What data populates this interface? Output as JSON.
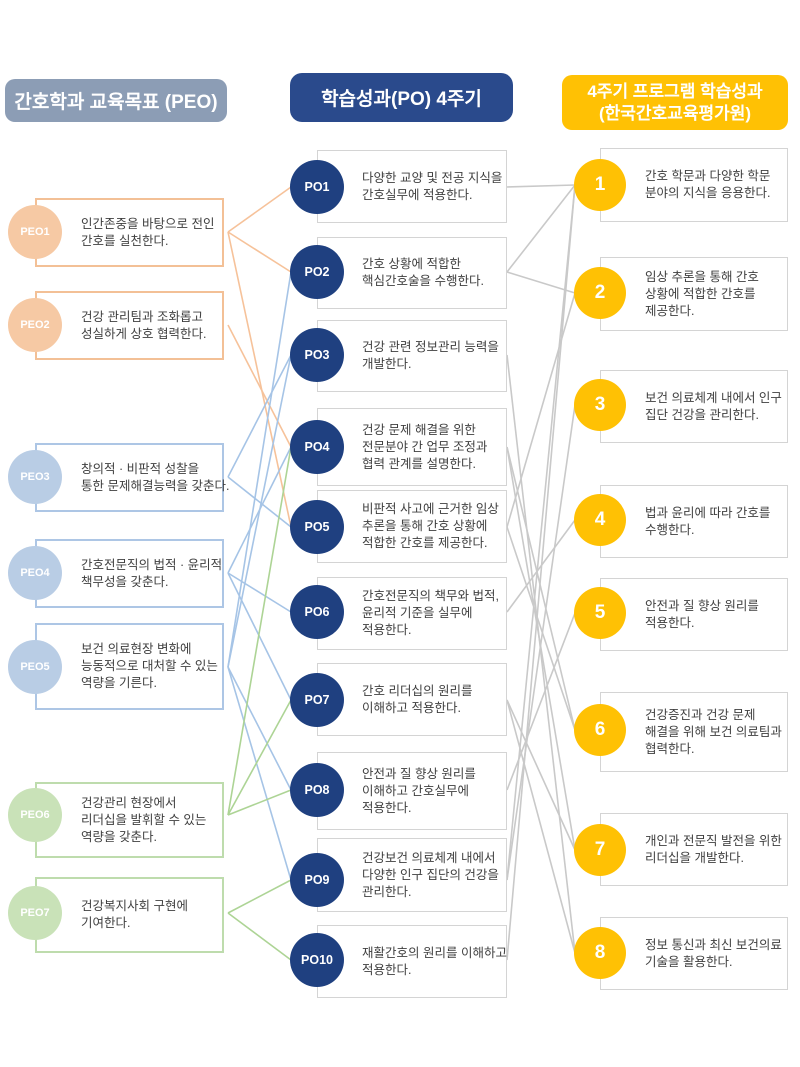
{
  "headers": {
    "peo": "간호학과 교육목표 (PEO)",
    "po": "학습성과(PO) 4주기",
    "outcome_line1": "4주기 프로그램 학습성과",
    "outcome_line2": "(한국간호교육평가원)"
  },
  "peo_items": [
    {
      "id": "PEO1",
      "label": "PEO1",
      "group": "peach",
      "lines": [
        "인간존중을 바탕으로 전인",
        "간호를 실천한다."
      ]
    },
    {
      "id": "PEO2",
      "label": "PEO2",
      "group": "peach",
      "lines": [
        "건강 관리팀과 조화롭고",
        "성실하게 상호 협력한다."
      ]
    },
    {
      "id": "PEO3",
      "label": "PEO3",
      "group": "blue",
      "lines": [
        "창의적 · 비판적 성찰을",
        "통한 문제해결능력을 갖춘다."
      ]
    },
    {
      "id": "PEO4",
      "label": "PEO4",
      "group": "blue",
      "lines": [
        "간호전문직의 법적 · 윤리적",
        "책무성을 갖춘다."
      ]
    },
    {
      "id": "PEO5",
      "label": "PEO5",
      "group": "blue",
      "lines": [
        "보건 의료현장 변화에",
        "능동적으로 대처할 수 있는",
        "역량을 기른다."
      ]
    },
    {
      "id": "PEO6",
      "label": "PEO6",
      "group": "green",
      "lines": [
        "건강관리 현장에서",
        "리더십을 발휘할 수 있는",
        "역량을 갖춘다."
      ]
    },
    {
      "id": "PEO7",
      "label": "PEO7",
      "group": "green",
      "lines": [
        "건강복지사회 구현에",
        "기여한다."
      ]
    }
  ],
  "po_items": [
    {
      "id": "PO1",
      "label": "PO1",
      "lines": [
        "다양한 교양 및 전공 지식을",
        "간호실무에 적용한다."
      ]
    },
    {
      "id": "PO2",
      "label": "PO2",
      "lines": [
        "간호 상황에 적합한",
        "핵심간호술을 수행한다."
      ]
    },
    {
      "id": "PO3",
      "label": "PO3",
      "lines": [
        "건강 관련 정보관리 능력을",
        "개발한다."
      ]
    },
    {
      "id": "PO4",
      "label": "PO4",
      "lines": [
        "건강 문제 해결을 위한",
        "전문분야 간 업무 조정과",
        "협력 관계를 설명한다."
      ]
    },
    {
      "id": "PO5",
      "label": "PO5",
      "lines": [
        "비판적 사고에 근거한 임상",
        "추론을 통해 간호 상황에",
        "적합한 간호를 제공한다."
      ]
    },
    {
      "id": "PO6",
      "label": "PO6",
      "lines": [
        "간호전문직의 책무와 법적,",
        "윤리적 기준을 실무에",
        "적용한다."
      ]
    },
    {
      "id": "PO7",
      "label": "PO7",
      "lines": [
        "간호 리더십의 원리를",
        "이해하고 적용한다."
      ]
    },
    {
      "id": "PO8",
      "label": "PO8",
      "lines": [
        "안전과 질 향상 원리를",
        "이해하고 간호실무에",
        "적용한다."
      ]
    },
    {
      "id": "PO9",
      "label": "PO9",
      "lines": [
        "건강보건 의료체계 내에서",
        "다양한 인구 집단의 건강을",
        "관리한다."
      ]
    },
    {
      "id": "PO10",
      "label": "PO10",
      "lines": [
        "재활간호의 원리를 이해하고",
        "적용한다."
      ]
    }
  ],
  "outcome_items": [
    {
      "id": "O1",
      "label": "1",
      "lines": [
        "간호 학문과 다양한 학문",
        "분야의 지식을 응용한다."
      ]
    },
    {
      "id": "O2",
      "label": "2",
      "lines": [
        "임상 추론을 통해 간호",
        "상황에 적합한 간호를",
        "제공한다."
      ]
    },
    {
      "id": "O3",
      "label": "3",
      "lines": [
        "보건 의료체계 내에서 인구",
        "집단 건강을 관리한다."
      ]
    },
    {
      "id": "O4",
      "label": "4",
      "lines": [
        "법과 윤리에 따라 간호를",
        "수행한다."
      ]
    },
    {
      "id": "O5",
      "label": "5",
      "lines": [
        "안전과 질 향상 원리를",
        "적용한다."
      ]
    },
    {
      "id": "O6",
      "label": "6",
      "lines": [
        "건강증진과 건강 문제",
        "해결을 위해 보건 의료팀과",
        "협력한다."
      ]
    },
    {
      "id": "O7",
      "label": "7",
      "lines": [
        "개인과 전문직 발전을 위한",
        "리더십을 개발한다."
      ]
    },
    {
      "id": "O8",
      "label": "8",
      "lines": [
        "정보 통신과 최신 보건의료",
        "기술을 활용한다."
      ]
    }
  ],
  "connections": {
    "peo_to_po": [
      [
        "PEO1",
        "PO1"
      ],
      [
        "PEO1",
        "PO2"
      ],
      [
        "PEO1",
        "PO5"
      ],
      [
        "PEO2",
        "PO4"
      ],
      [
        "PEO3",
        "PO3"
      ],
      [
        "PEO3",
        "PO5"
      ],
      [
        "PEO4",
        "PO4"
      ],
      [
        "PEO4",
        "PO6"
      ],
      [
        "PEO4",
        "PO7"
      ],
      [
        "PEO5",
        "PO2"
      ],
      [
        "PEO5",
        "PO3"
      ],
      [
        "PEO5",
        "PO8"
      ],
      [
        "PEO5",
        "PO9"
      ],
      [
        "PEO6",
        "PO4"
      ],
      [
        "PEO6",
        "PO7"
      ],
      [
        "PEO6",
        "PO8"
      ],
      [
        "PEO7",
        "PO9"
      ],
      [
        "PEO7",
        "PO10"
      ]
    ],
    "po_to_outcome": [
      [
        "PO1",
        "O1"
      ],
      [
        "PO2",
        "O1"
      ],
      [
        "PO9",
        "O1"
      ],
      [
        "PO10",
        "O1"
      ],
      [
        "PO2",
        "O2"
      ],
      [
        "PO5",
        "O2"
      ],
      [
        "PO9",
        "O3"
      ],
      [
        "PO6",
        "O4"
      ],
      [
        "PO8",
        "O5"
      ],
      [
        "PO4",
        "O6"
      ],
      [
        "PO5",
        "O6"
      ],
      [
        "PO7",
        "O7"
      ],
      [
        "PO4",
        "O7"
      ],
      [
        "PO3",
        "O8"
      ],
      [
        "PO7",
        "O8"
      ]
    ]
  },
  "colors": {
    "header_peo_bg": "#8C9DB5",
    "header_po_bg": "#2A4A8C",
    "header_outcome_bg": "#FFC104",
    "peach_circle": "#F6C9A4",
    "peach_border": "#F3C096",
    "blue_circle": "#B9CDE5",
    "blue_border": "#ADC6E5",
    "green_circle": "#C9E2B8",
    "green_border": "#BEDCAD",
    "po_circle": "#1F4080",
    "outcome_circle": "#FFC104",
    "box_border_gray": "#D4D4D4",
    "line_orange": "#F6C29A",
    "line_blue": "#A6C4E6",
    "line_green": "#ADD495",
    "line_gray": "#C9C9C9",
    "text": "#3F3F3F"
  }
}
